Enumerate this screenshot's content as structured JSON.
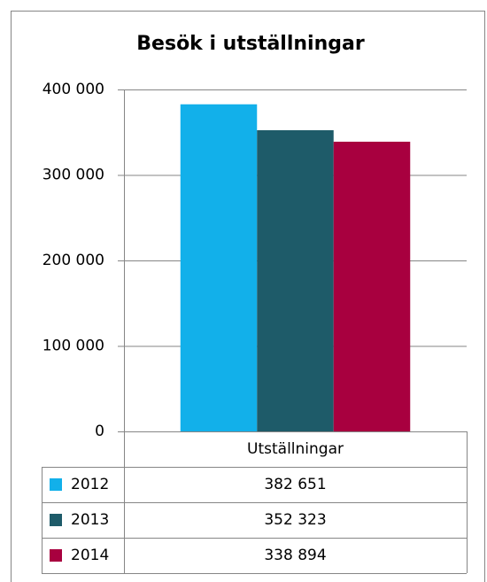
{
  "chart_data": {
    "type": "bar",
    "title": "Besök i utställningar",
    "categories": [
      "Utställningar"
    ],
    "series": [
      {
        "name": "2012",
        "color": "#12b0ea",
        "values": [
          382651
        ],
        "value_labels": [
          "382 651"
        ]
      },
      {
        "name": "2013",
        "color": "#1e5b69",
        "values": [
          352323
        ],
        "value_labels": [
          "352 323"
        ]
      },
      {
        "name": "2014",
        "color": "#a8003f",
        "values": [
          338894
        ],
        "value_labels": [
          "338 894"
        ]
      }
    ],
    "ylim": [
      0,
      400000
    ],
    "yticks": [
      0,
      {
        "value": 100000,
        "label": "100 000"
      },
      {
        "value": 200000,
        "label": "200 000"
      },
      {
        "value": 300000,
        "label": "300 000"
      },
      {
        "value": 400000,
        "label": "400 000"
      }
    ],
    "grid": true,
    "legend": "data-table"
  }
}
